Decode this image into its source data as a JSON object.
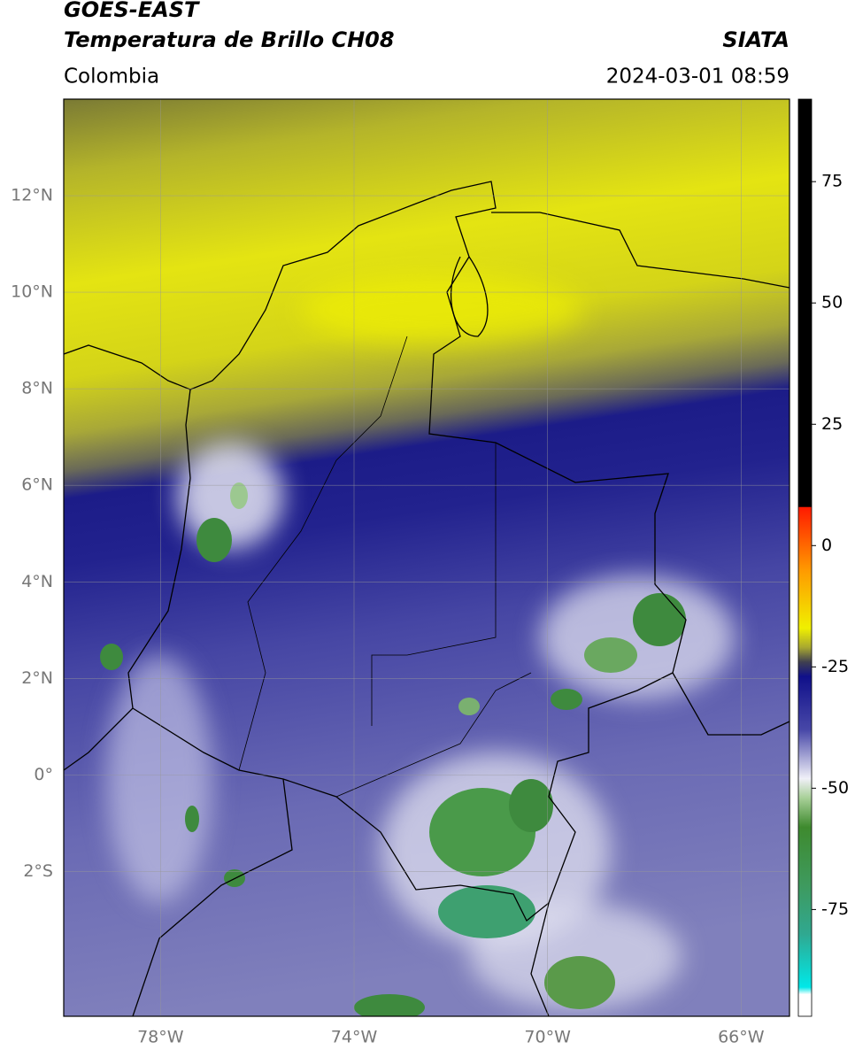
{
  "header": {
    "satellite": "GOES-EAST",
    "product": "Temperatura de Brillo CH08",
    "source": "SIATA",
    "region": "Colombia",
    "datetime": "2024-03-01 08:59"
  },
  "map": {
    "xlim": [
      -80,
      -65
    ],
    "ylim": [
      -5,
      14
    ],
    "lon_ticks": [
      {
        "value": -78,
        "label": "78°W"
      },
      {
        "value": -74,
        "label": "74°W"
      },
      {
        "value": -70,
        "label": "70°W"
      },
      {
        "value": -66,
        "label": "66°W"
      }
    ],
    "lat_ticks": [
      {
        "value": 12,
        "label": "12°N"
      },
      {
        "value": 10,
        "label": "10°N"
      },
      {
        "value": 8,
        "label": "8°N"
      },
      {
        "value": 6,
        "label": "6°N"
      },
      {
        "value": 4,
        "label": "4°N"
      },
      {
        "value": 2,
        "label": "2°N"
      },
      {
        "value": 0,
        "label": "0°"
      },
      {
        "value": -2,
        "label": "2°S"
      }
    ],
    "grid": true
  },
  "colorbar": {
    "lim": [
      -97,
      92
    ],
    "ticks": [
      75,
      50,
      25,
      0,
      -25,
      -50,
      -75
    ],
    "stops": [
      {
        "value": 92,
        "color": "#000000"
      },
      {
        "value": 8,
        "color": "#000000"
      },
      {
        "value": 7.9,
        "color": "#ff1a00"
      },
      {
        "value": -5,
        "color": "#ff9900"
      },
      {
        "value": -17,
        "color": "#f0f000"
      },
      {
        "value": -21,
        "color": "#a8a830"
      },
      {
        "value": -24,
        "color": "#404050"
      },
      {
        "value": -27,
        "color": "#10108a"
      },
      {
        "value": -38,
        "color": "#4848a8"
      },
      {
        "value": -48,
        "color": "#f0f0f8"
      },
      {
        "value": -52,
        "color": "#a8d098"
      },
      {
        "value": -58,
        "color": "#3e8a2e"
      },
      {
        "value": -70,
        "color": "#3e9a5e"
      },
      {
        "value": -80,
        "color": "#30a890"
      },
      {
        "value": -91,
        "color": "#00e8e8"
      },
      {
        "value": -92.5,
        "color": "#ffffff"
      },
      {
        "value": -97,
        "color": "#ffffff"
      }
    ]
  }
}
